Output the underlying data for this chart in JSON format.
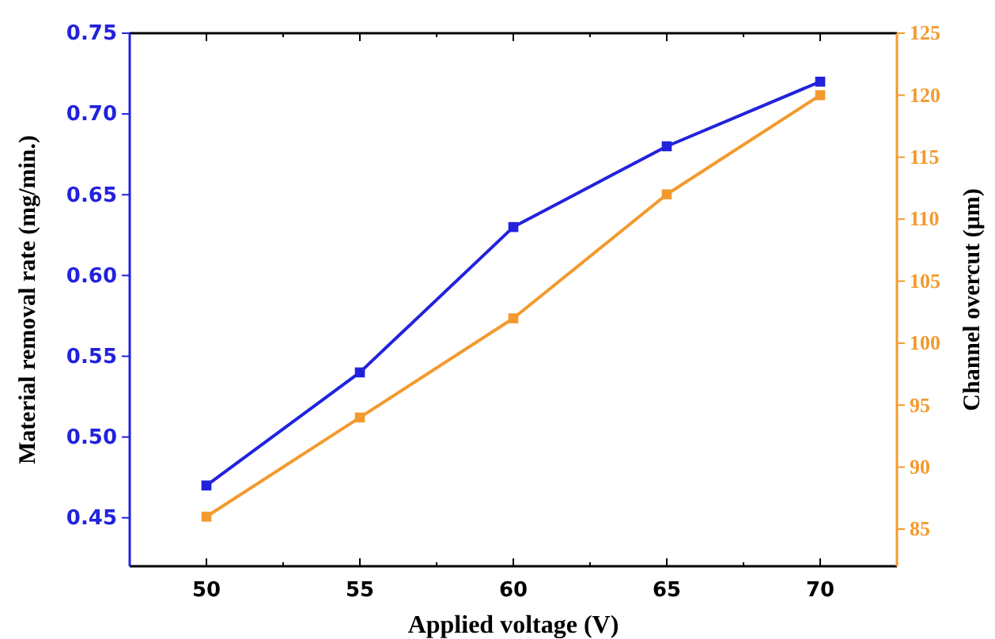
{
  "chart_data": {
    "type": "line",
    "xlabel": "Applied voltage (V)",
    "ylabel": "Material removal rate (mg/min.)",
    "y2label": "Channel overcut (μm)",
    "x": [
      50,
      55,
      60,
      65,
      70
    ],
    "series": [
      {
        "color": "#2222dd",
        "values": [
          0.47,
          0.54,
          0.63,
          0.68,
          0.72
        ]
      },
      {
        "color": "#f39a2e",
        "axis": "y2",
        "values": [
          86,
          94,
          102,
          112,
          120
        ]
      }
    ],
    "xlim": [
      47.5,
      72.5
    ],
    "xticks": [
      50,
      {
        "value": 52.5,
        "label": null
      },
      55,
      {
        "value": 57.5,
        "label": null
      },
      60,
      {
        "value": 62.5,
        "label": null
      },
      65,
      {
        "value": 67.5,
        "label": null
      },
      70
    ],
    "ylim": [
      0.42,
      0.75
    ],
    "yticks": [
      {
        "value": 0.45,
        "label": "0.45"
      },
      {
        "value": 0.5,
        "label": "0.50"
      },
      {
        "value": 0.55,
        "label": "0.55"
      },
      {
        "value": 0.6,
        "label": "0.60"
      },
      {
        "value": 0.65,
        "label": "0.65"
      },
      {
        "value": 0.7,
        "label": "0.70"
      },
      {
        "value": 0.75,
        "label": "0.75"
      }
    ],
    "y2lim": [
      82,
      125
    ],
    "y2ticks": [
      85,
      90,
      95,
      100,
      105,
      110,
      115,
      120,
      125
    ],
    "marker": "square",
    "grid": false
  }
}
